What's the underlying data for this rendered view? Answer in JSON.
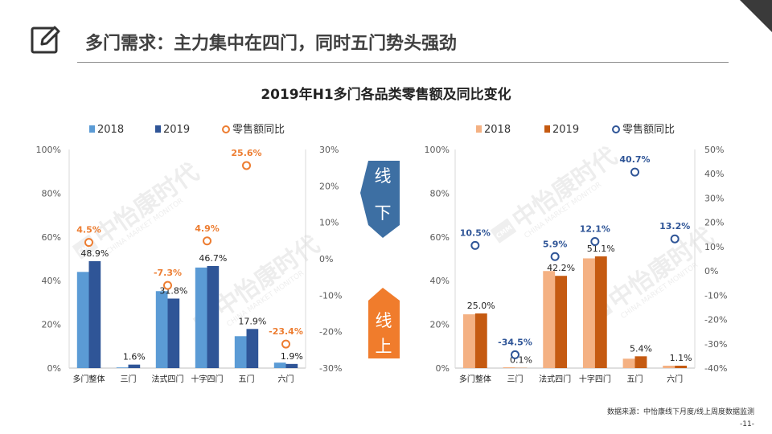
{
  "header": {
    "title": "多门需求：主力集中在四门，同时五门势头强劲"
  },
  "chart_title": "2019年H1多门各品类零售额及同比变化",
  "badges": {
    "offline": "线下",
    "online": "线上"
  },
  "watermark": {
    "name": "中怡康时代",
    "sub": "CHINA MARKET MONITOR",
    "logo": "CMM"
  },
  "colors": {
    "offline_2018": "#5b9bd5",
    "offline_2019": "#2f5597",
    "offline_yoy": "#ed7d31",
    "online_2018": "#f4b183",
    "online_2019": "#c55a11",
    "online_yoy": "#2f5597",
    "badge_offline": "#3d6fa3",
    "badge_online": "#f07c2c"
  },
  "chart_data": [
    {
      "type": "bar",
      "name": "offline",
      "categories": [
        "多门整体",
        "三门",
        "法式四门",
        "十字四门",
        "五门",
        "六门"
      ],
      "series": [
        {
          "name": "2018",
          "values": [
            44.0,
            0.3,
            35.2,
            46.0,
            14.6,
            2.5
          ]
        },
        {
          "name": "2019",
          "values": [
            48.9,
            1.6,
            31.8,
            46.7,
            17.9,
            1.9
          ],
          "labels": [
            "48.9%",
            "1.6%",
            "31.8%",
            "46.7%",
            "17.9%",
            "1.9%"
          ]
        }
      ],
      "line": {
        "name": "零售额同比",
        "values": [
          4.5,
          null,
          -7.3,
          4.9,
          25.6,
          -23.4
        ],
        "labels": [
          "4.5%",
          "",
          "-7.3%",
          "4.9%",
          "25.6%",
          "-23.4%"
        ]
      },
      "ylim": [
        0,
        100
      ],
      "yticks": [
        "0%",
        "20%",
        "40%",
        "60%",
        "80%",
        "100%"
      ],
      "y2lim": [
        -30,
        30
      ],
      "y2ticks": [
        "-30%",
        "-20%",
        "-10%",
        "0%",
        "10%",
        "20%",
        "30%"
      ],
      "legend": [
        "2018",
        "2019",
        "零售额同比"
      ]
    },
    {
      "type": "bar",
      "name": "online",
      "categories": [
        "多门整体",
        "三门",
        "法式四门",
        "十字四门",
        "五门",
        "六门"
      ],
      "series": [
        {
          "name": "2018",
          "values": [
            24.6,
            0.4,
            44.4,
            50.2,
            4.3,
            1.1
          ]
        },
        {
          "name": "2019",
          "values": [
            25.0,
            0.1,
            42.2,
            51.1,
            5.4,
            1.1
          ],
          "labels": [
            "25.0%",
            "0.1%",
            "42.2%",
            "51.1%",
            "5.4%",
            "1.1%"
          ]
        }
      ],
      "line": {
        "name": "零售额同比",
        "values": [
          10.5,
          -34.5,
          5.9,
          12.1,
          40.7,
          13.2
        ],
        "labels": [
          "10.5%",
          "-34.5%",
          "5.9%",
          "12.1%",
          "40.7%",
          "13.2%"
        ]
      },
      "ylim": [
        0,
        100
      ],
      "yticks": [
        "0%",
        "20%",
        "40%",
        "60%",
        "80%",
        "100%"
      ],
      "y2lim": [
        -40,
        50
      ],
      "y2ticks": [
        "-40%",
        "-30%",
        "-20%",
        "-10%",
        "0%",
        "10%",
        "20%",
        "30%",
        "40%",
        "50%"
      ],
      "legend": [
        "2018",
        "2019",
        "零售额同比"
      ]
    }
  ],
  "footer": {
    "source": "数据来源：中怡康线下月度/线上周度数据监测",
    "page": "-11-"
  }
}
